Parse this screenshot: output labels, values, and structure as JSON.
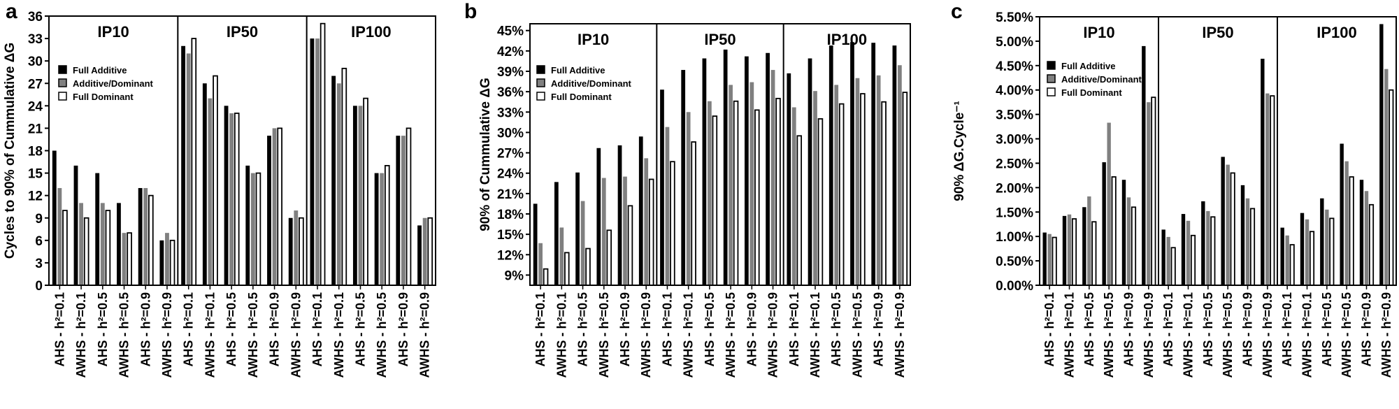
{
  "chart_data": [
    {
      "type": "bar",
      "panel": "a",
      "ylabel": "Cycles to 90% of Cummulative ΔG",
      "groups": [
        "IP10",
        "IP50",
        "IP100"
      ],
      "categories": [
        "AHS - h²=0.1",
        "AWHS - h²=0.1",
        "AHS - h²=0.5",
        "AWHS - h²=0.5",
        "AHS - h²=0.9",
        "AWHS - h²=0.9",
        "AHS - h²=0.1",
        "AWHS - h²=0.1",
        "AHS - h²=0.5",
        "AWHS - h²=0.5",
        "AHS - h²=0.9",
        "AWHS - h²=0.9",
        "AHS - h²=0.1",
        "AWHS - h²=0.1",
        "AHS - h²=0.5",
        "AWHS - h²=0.5",
        "AHS - h²=0.9",
        "AWHS - h²=0.9"
      ],
      "series": [
        {
          "name": "Full Additive",
          "color": "#000000",
          "values": [
            18,
            16,
            15,
            11,
            13,
            6,
            32,
            27,
            24,
            16,
            20,
            9,
            33,
            28,
            24,
            15,
            20,
            8
          ]
        },
        {
          "name": "Additive/Dominant",
          "color": "#808080",
          "values": [
            13,
            11,
            11,
            7,
            13,
            7,
            31,
            25,
            23,
            15,
            21,
            10,
            33,
            27,
            24,
            15,
            20,
            9
          ]
        },
        {
          "name": "Full Dominant",
          "color": "#ffffff",
          "values": [
            10,
            9,
            10,
            7,
            12,
            6,
            33,
            28,
            23,
            15,
            21,
            9,
            35,
            29,
            25,
            16,
            21,
            9
          ]
        }
      ],
      "ylim": [
        0,
        36
      ],
      "yticks": [
        0,
        3,
        6,
        9,
        12,
        15,
        18,
        21,
        24,
        27,
        30,
        33,
        36
      ]
    },
    {
      "type": "bar",
      "panel": "b",
      "ylabel": "90% of Cummulative ΔG",
      "groups": [
        "IP10",
        "IP50",
        "IP100"
      ],
      "categories": [
        "AHS - h²=0.1",
        "AWHS - h²=0.1",
        "AHS - h²=0.5",
        "AWHS - h²=0.5",
        "AHS - h²=0.9",
        "AWHS - h²=0.9",
        "AHS - h²=0.1",
        "AWHS - h²=0.1",
        "AHS - h²=0.5",
        "AWHS - h²=0.5",
        "AHS - h²=0.9",
        "AWHS - h²=0.9",
        "AHS - h²=0.1",
        "AWHS - h²=0.1",
        "AHS - h²=0.5",
        "AWHS - h²=0.5",
        "AHS - h²=0.9",
        "AWHS - h²=0.9"
      ],
      "series": [
        {
          "name": "Full Additive",
          "color": "#000000",
          "values": [
            19.5,
            22.7,
            24.1,
            27.7,
            28.1,
            29.4,
            36.3,
            39.2,
            40.9,
            42.2,
            41.2,
            41.7,
            38.7,
            40.9,
            42.8,
            43.3,
            43.2,
            42.8
          ]
        },
        {
          "name": "Additive/Dominant",
          "color": "#808080",
          "values": [
            13.7,
            16,
            19.9,
            23.3,
            23.5,
            26.2,
            30.8,
            33,
            34.6,
            37,
            37.4,
            39.2,
            33.7,
            36.1,
            37,
            38,
            38.4,
            39.9
          ]
        },
        {
          "name": "Full Dominant",
          "color": "#ffffff",
          "values": [
            9.9,
            12.3,
            12.9,
            15.6,
            19.2,
            23.1,
            25.7,
            28.6,
            32.4,
            34.6,
            33.3,
            35,
            29.5,
            32,
            34.2,
            35.7,
            34.5,
            35.9
          ]
        }
      ],
      "ylim": [
        7.5,
        46
      ],
      "yticks": [
        {
          "value": 9,
          "label": "9%"
        },
        {
          "value": 12,
          "label": "12%"
        },
        {
          "value": 15,
          "label": "15%"
        },
        {
          "value": 18,
          "label": "18%"
        },
        {
          "value": 21,
          "label": "21%"
        },
        {
          "value": 24,
          "label": "24%"
        },
        {
          "value": 27,
          "label": "27%"
        },
        {
          "value": 30,
          "label": "30%"
        },
        {
          "value": 33,
          "label": "33%"
        },
        {
          "value": 36,
          "label": "36%"
        },
        {
          "value": 39,
          "label": "39%"
        },
        {
          "value": 42,
          "label": "42%"
        },
        {
          "value": 45,
          "label": "45%"
        }
      ]
    },
    {
      "type": "bar",
      "panel": "c",
      "ylabel": "90% ΔG.Cycle⁻¹",
      "groups": [
        "IP10",
        "IP50",
        "IP100"
      ],
      "categories": [
        "AHS - h²=0.1",
        "AWHS - h²=0.1",
        "AHS - h²=0.5",
        "AWHS - h²=0.5",
        "AHS - h²=0.9",
        "AWHS - h²=0.9",
        "AHS - h²=0.1",
        "AWHS - h²=0.1",
        "AHS - h²=0.5",
        "AWHS - h²=0.5",
        "AHS - h²=0.9",
        "AWHS - h²=0.9",
        "AHS - h²=0.1",
        "AWHS - h²=0.1",
        "AHS - h²=0.5",
        "AWHS - h²=0.5",
        "AHS - h²=0.9",
        "AWHS - h²=0.9"
      ],
      "series": [
        {
          "name": "Full Additive",
          "color": "#000000",
          "values": [
            1.08,
            1.42,
            1.6,
            2.52,
            2.16,
            4.9,
            1.14,
            1.46,
            1.72,
            2.63,
            2.05,
            4.64,
            1.18,
            1.48,
            1.78,
            2.9,
            2.16,
            5.35
          ]
        },
        {
          "name": "Additive/Dominant",
          "color": "#808080",
          "values": [
            1.05,
            1.45,
            1.82,
            3.33,
            1.8,
            3.75,
            0.99,
            1.32,
            1.52,
            2.47,
            1.78,
            3.93,
            1.02,
            1.35,
            1.55,
            2.54,
            1.93,
            4.43
          ]
        },
        {
          "name": "Full Dominant",
          "color": "#ffffff",
          "values": [
            0.98,
            1.36,
            1.3,
            2.22,
            1.6,
            3.85,
            0.77,
            1.02,
            1.4,
            2.3,
            1.57,
            3.88,
            0.83,
            1.1,
            1.37,
            2.22,
            1.65,
            4.0
          ]
        }
      ],
      "ylim": [
        0,
        5.5
      ],
      "yticks": [
        {
          "value": 0,
          "label": "0.00%"
        },
        {
          "value": 0.5,
          "label": "0.50%"
        },
        {
          "value": 1,
          "label": "1.00%"
        },
        {
          "value": 1.5,
          "label": "1.50%"
        },
        {
          "value": 2,
          "label": "2.00%"
        },
        {
          "value": 2.5,
          "label": "2.50%"
        },
        {
          "value": 3,
          "label": "3.00%"
        },
        {
          "value": 3.5,
          "label": "3.50%"
        },
        {
          "value": 4,
          "label": "4.00%"
        },
        {
          "value": 4.5,
          "label": "4.50%"
        },
        {
          "value": 5,
          "label": "5.00%"
        },
        {
          "value": 5.5,
          "label": "5.50%"
        }
      ]
    }
  ]
}
